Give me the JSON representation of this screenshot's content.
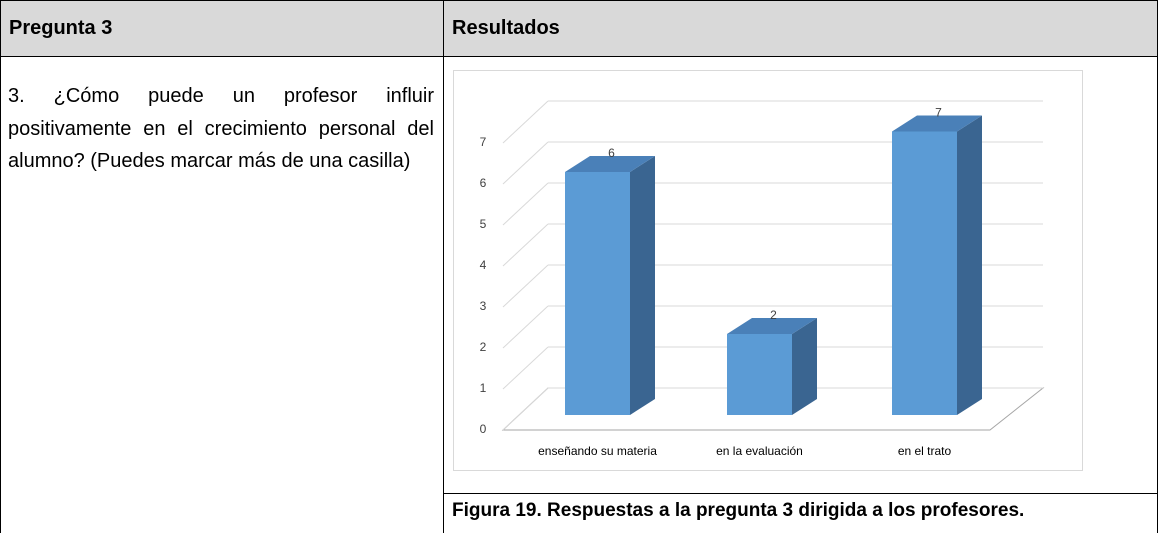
{
  "table": {
    "headers": [
      "Pregunta 3",
      "Resultados"
    ],
    "question": "3. ¿Cómo puede un profesor influir positivamente en el crecimiento personal del alumno? (Puedes marcar más de una casilla)",
    "chart": {
      "type": "bar",
      "categories": [
        "enseñando su materia",
        "en la evaluación",
        "en el trato"
      ],
      "values": [
        6,
        2,
        7
      ],
      "color": "#5b9bd5",
      "ylim": [
        0,
        7
      ],
      "yticks": [
        0,
        1,
        2,
        3,
        4,
        5,
        6,
        7
      ],
      "grid": true
    },
    "caption": "Figura 19. Respuestas a la pregunta 3 dirigida a los profesores."
  }
}
